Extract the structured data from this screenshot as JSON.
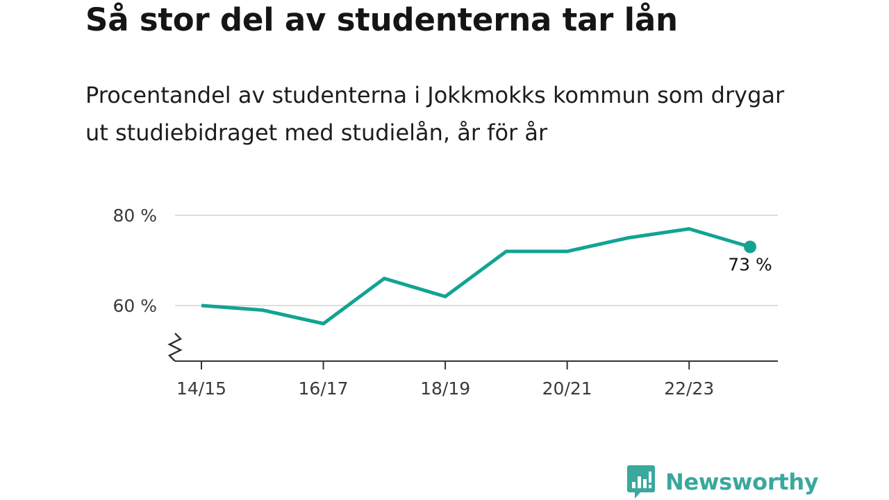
{
  "title": "Så stor del av studenterna tar lån",
  "subtitle": "Procentandel av studenterna i Jokkmokks kommun som drygar ut studiebidraget med studielån, år för år",
  "brand": {
    "name": "Newsworthy",
    "icon": "newsworthy-logo-icon"
  },
  "colors": {
    "line": "#12a393",
    "grid": "#dddddd",
    "axis": "#333333",
    "brand": "#3aa89c"
  },
  "chart_data": {
    "type": "line",
    "title": "Så stor del av studenterna tar lån",
    "subtitle": "Procentandel av studenterna i Jokkmokks kommun som drygar ut studiebidraget med studielån, år för år",
    "x": [
      "14/15",
      "15/16",
      "16/17",
      "17/18",
      "18/19",
      "19/20",
      "20/21",
      "21/22",
      "22/23",
      "23/24"
    ],
    "series": [
      {
        "values": [
          60,
          59,
          56,
          66,
          62,
          72,
          72,
          75,
          77,
          73
        ]
      }
    ],
    "x_tick_labels": [
      "14/15",
      "16/17",
      "18/19",
      "20/21",
      "22/23"
    ],
    "y_ticks": [
      60,
      80
    ],
    "y_tick_labels": [
      "60 %",
      "80 %"
    ],
    "ylim": [
      48,
      80
    ],
    "y_axis_break": true,
    "grid": true,
    "last_point_label": "73 %"
  }
}
